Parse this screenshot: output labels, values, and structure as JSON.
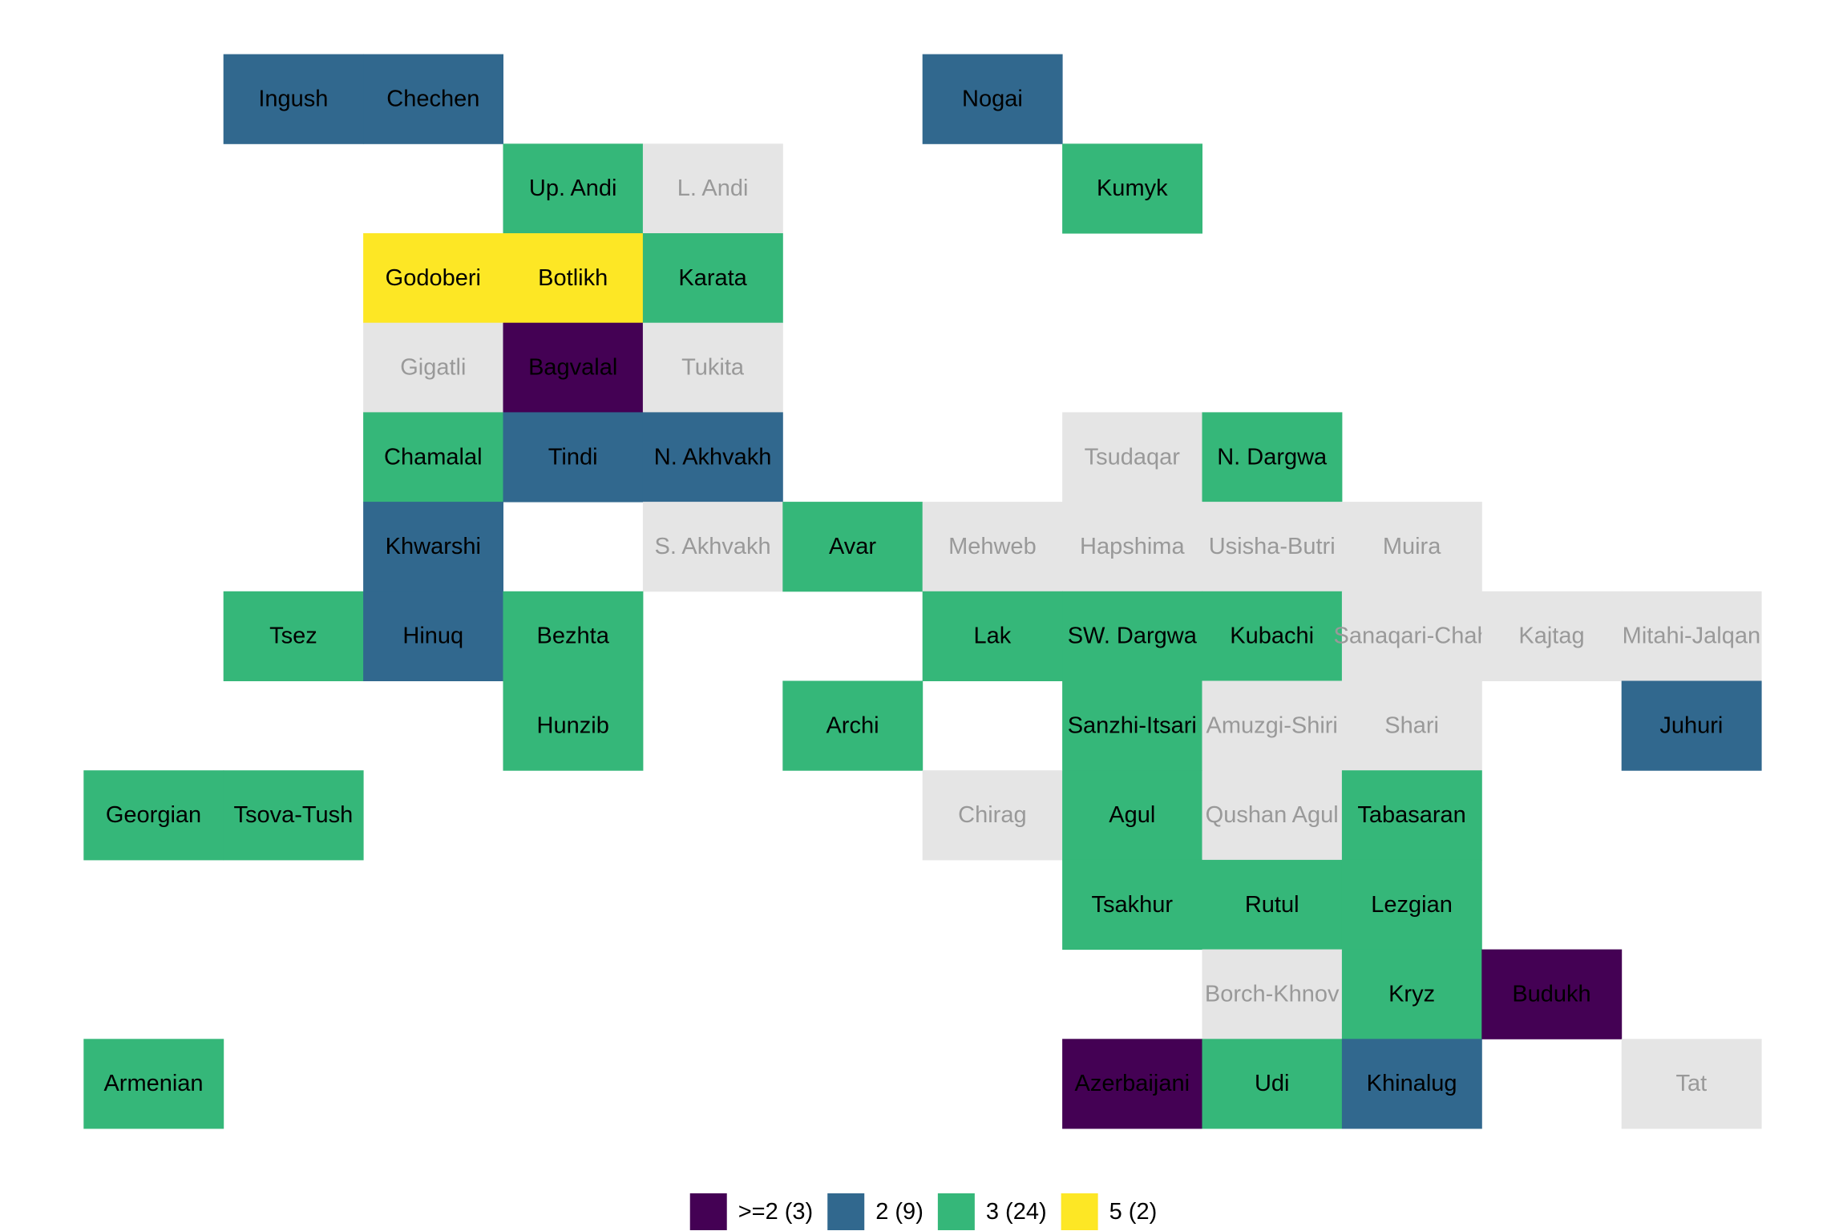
{
  "map": {
    "legend": [
      {
        "label": ">=2 (3)",
        "color": "#440154"
      },
      {
        "label": "2 (9)",
        "color": "#31688e"
      },
      {
        "label": "3 (24)",
        "color": "#35b779"
      },
      {
        "label": "5 (2)",
        "color": "#fde725"
      }
    ],
    "rows": [
      [
        null,
        {
          "label": "Ingush",
          "color": "#31688e"
        },
        {
          "label": "Chechen",
          "color": "#31688e"
        },
        null,
        null,
        null,
        {
          "label": "Nogai",
          "color": "#31688e"
        },
        null,
        null,
        null,
        null,
        null
      ],
      [
        null,
        null,
        null,
        {
          "label": "Up. Andi",
          "color": "#35b779"
        },
        {
          "label": "L. Andi",
          "color": "#e5e5e5"
        },
        null,
        null,
        {
          "label": "Kumyk",
          "color": "#35b779"
        },
        null,
        null,
        null,
        null
      ],
      [
        null,
        null,
        {
          "label": "Godoberi",
          "color": "#fde725"
        },
        {
          "label": "Botlikh",
          "color": "#fde725"
        },
        {
          "label": "Karata",
          "color": "#35b779"
        },
        null,
        null,
        null,
        null,
        null,
        null,
        null
      ],
      [
        null,
        null,
        {
          "label": "Gigatli",
          "color": "#e5e5e5"
        },
        {
          "label": "Bagvalal",
          "color": "#440154"
        },
        {
          "label": "Tukita",
          "color": "#e5e5e5"
        },
        null,
        null,
        null,
        null,
        null,
        null,
        null
      ],
      [
        null,
        null,
        {
          "label": "Chamalal",
          "color": "#35b779"
        },
        {
          "label": "Tindi",
          "color": "#31688e"
        },
        {
          "label": "N. Akhvakh",
          "color": "#31688e"
        },
        null,
        null,
        {
          "label": "Tsudaqar",
          "color": "#e5e5e5"
        },
        {
          "label": "N. Dargwa",
          "color": "#35b779"
        },
        null,
        null,
        null
      ],
      [
        null,
        null,
        {
          "label": "Khwarshi",
          "color": "#31688e"
        },
        null,
        {
          "label": "S. Akhvakh",
          "color": "#e5e5e5"
        },
        {
          "label": "Avar",
          "color": "#35b779"
        },
        {
          "label": "Mehweb",
          "color": "#e5e5e5"
        },
        {
          "label": "Hapshima",
          "color": "#e5e5e5"
        },
        {
          "label": "Usisha-Butri",
          "color": "#e5e5e5"
        },
        {
          "label": "Muira",
          "color": "#e5e5e5"
        },
        null,
        null
      ],
      [
        null,
        {
          "label": "Tsez",
          "color": "#35b779"
        },
        {
          "label": "Hinuq",
          "color": "#31688e"
        },
        {
          "label": "Bezhta",
          "color": "#35b779"
        },
        null,
        null,
        {
          "label": "Lak",
          "color": "#35b779"
        },
        {
          "label": "SW. Dargwa",
          "color": "#35b779"
        },
        {
          "label": "Kubachi",
          "color": "#35b779"
        },
        {
          "label": "Sanaqari-Chah",
          "color": "#e5e5e5"
        },
        {
          "label": "Kajtag",
          "color": "#e5e5e5"
        },
        {
          "label": "Mitahi-Jalqan",
          "color": "#e5e5e5"
        }
      ],
      [
        null,
        null,
        null,
        {
          "label": "Hunzib",
          "color": "#35b779"
        },
        null,
        {
          "label": "Archi",
          "color": "#35b779"
        },
        null,
        {
          "label": "Sanzhi-Itsari",
          "color": "#35b779"
        },
        {
          "label": "Amuzgi-Shiri",
          "color": "#e5e5e5"
        },
        {
          "label": "Shari",
          "color": "#e5e5e5"
        },
        null,
        {
          "label": "Juhuri",
          "color": "#31688e"
        }
      ],
      [
        {
          "label": "Georgian",
          "color": "#35b779"
        },
        {
          "label": "Tsova-Tush",
          "color": "#35b779"
        },
        null,
        null,
        null,
        null,
        {
          "label": "Chirag",
          "color": "#e5e5e5"
        },
        {
          "label": "Agul",
          "color": "#35b779"
        },
        {
          "label": "Qushan Agul",
          "color": "#e5e5e5"
        },
        {
          "label": "Tabasaran",
          "color": "#35b779"
        },
        null,
        null
      ],
      [
        null,
        null,
        null,
        null,
        null,
        null,
        null,
        {
          "label": "Tsakhur",
          "color": "#35b779"
        },
        {
          "label": "Rutul",
          "color": "#35b779"
        },
        {
          "label": "Lezgian",
          "color": "#35b779"
        },
        null,
        null
      ],
      [
        null,
        null,
        null,
        null,
        null,
        null,
        null,
        null,
        {
          "label": "Borch-Khnov",
          "color": "#e5e5e5"
        },
        {
          "label": "Kryz",
          "color": "#35b779"
        },
        {
          "label": "Budukh",
          "color": "#440154"
        },
        null
      ],
      [
        {
          "label": "Armenian",
          "color": "#35b779"
        },
        null,
        null,
        null,
        null,
        null,
        null,
        {
          "label": "Azerbaijani",
          "color": "#440154"
        },
        {
          "label": "Udi",
          "color": "#35b779"
        },
        {
          "label": "Khinalug",
          "color": "#31688e"
        },
        null,
        {
          "label": "Tat",
          "color": "#e5e5e5"
        }
      ]
    ]
  }
}
